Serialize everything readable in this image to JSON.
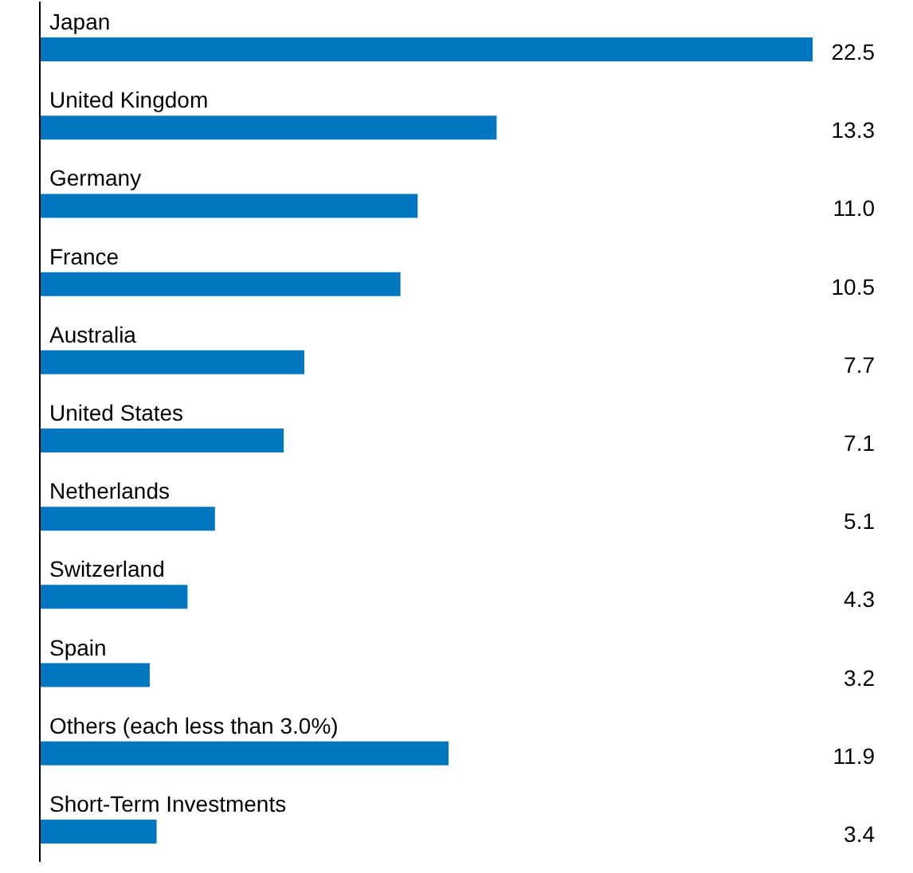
{
  "chart_data": {
    "type": "bar",
    "orientation": "horizontal",
    "categories": [
      "Japan",
      "United Kingdom",
      "Germany",
      "France",
      "Australia",
      "United States",
      "Netherlands",
      "Switzerland",
      "Spain",
      "Others (each less than 3.0%)",
      "Short-Term Investments"
    ],
    "values": [
      22.5,
      13.3,
      11.0,
      10.5,
      7.7,
      7.1,
      5.1,
      4.3,
      3.2,
      11.9,
      3.4
    ],
    "value_labels": [
      "22.5",
      "13.3",
      "11.0",
      "10.5",
      "7.7",
      "7.1",
      "5.1",
      "4.3",
      "3.2",
      "11.9",
      "3.4"
    ],
    "color": "#0077c0"
  }
}
